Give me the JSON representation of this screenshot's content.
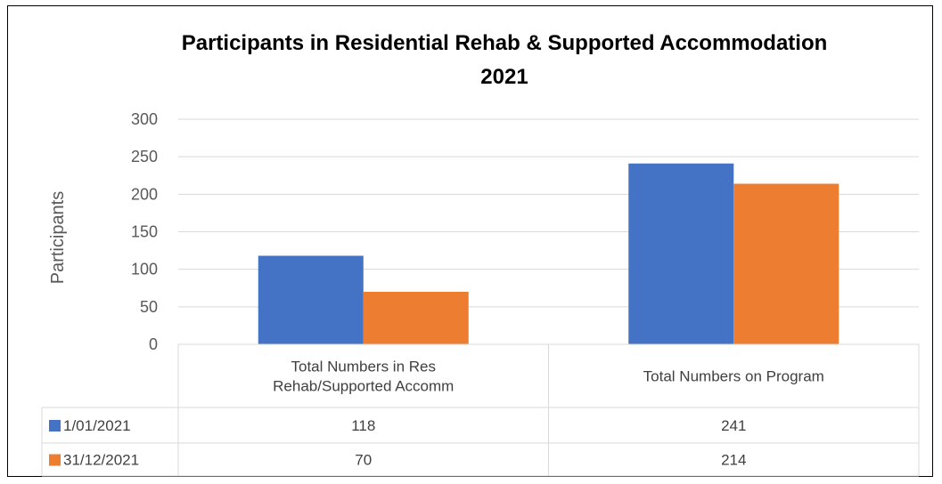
{
  "chart_data": {
    "type": "bar",
    "title": "Participants in Residential Rehab & Supported Accommodation",
    "title_line2": "2021",
    "xlabel": "",
    "ylabel": "Participants",
    "ylim": [
      0,
      300
    ],
    "yticks": [
      0,
      50,
      100,
      150,
      200,
      250,
      300
    ],
    "grid": true,
    "legend": "data-table",
    "categories": [
      [
        "Total Numbers in Res",
        "Rehab/Supported Accomm"
      ],
      [
        "Total Numbers on Program"
      ]
    ],
    "series": [
      {
        "name": "1/01/2021",
        "color": "#4472C4",
        "values": [
          118,
          241
        ]
      },
      {
        "name": "31/12/2021",
        "color": "#ED7D31",
        "values": [
          70,
          214
        ]
      }
    ]
  }
}
